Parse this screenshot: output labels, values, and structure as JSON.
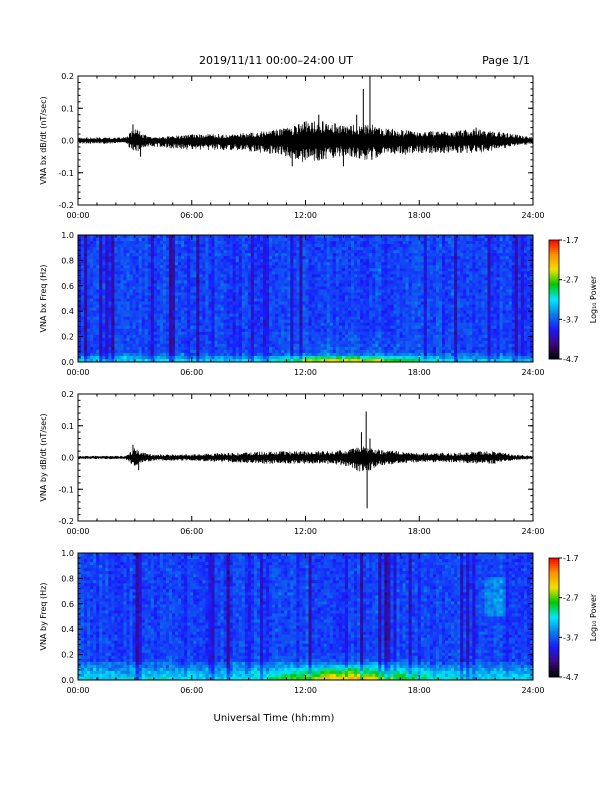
{
  "header": {
    "title": "2019/11/11  00:00–24:00 UT",
    "page": "Page 1/1"
  },
  "colors": {
    "trace": "#000000",
    "colormap": [
      "#000000",
      "#3a0a7a",
      "#1a1aff",
      "#0a7ee8",
      "#00e8ff",
      "#00c800",
      "#f0e000",
      "#ff9000",
      "#ff0000"
    ]
  },
  "colorbar": {
    "label": "Log₁₀ Power",
    "ticks": [
      "-1.7",
      "-2.7",
      "-3.7",
      "-4.7"
    ]
  },
  "time_axis": {
    "ticks": [
      "00:00",
      "06:00",
      "12:00",
      "18:00",
      "24:00"
    ],
    "label": "Universal Time (hh:mm)"
  },
  "chart_data": [
    {
      "type": "line",
      "ylabel": "VNA bx dB/dt (nT/sec)",
      "ylim": [
        -0.2,
        0.2
      ],
      "yticks": [
        "0.2",
        "0.1",
        "0.0",
        "-0.1",
        "-0.2"
      ],
      "x_units": "hours UT",
      "xlim": [
        0,
        24
      ],
      "envelope": {
        "x": [
          0,
          2.5,
          3,
          3.5,
          4,
          6,
          8,
          10,
          11,
          12,
          13,
          14,
          15,
          15.5,
          16,
          18,
          20,
          21,
          22,
          23,
          24
        ],
        "upper": [
          0.01,
          0.01,
          0.04,
          0.02,
          0.01,
          0.02,
          0.02,
          0.03,
          0.04,
          0.06,
          0.06,
          0.05,
          0.05,
          0.05,
          0.04,
          0.03,
          0.03,
          0.04,
          0.03,
          0.02,
          0.01
        ],
        "lower": [
          -0.01,
          -0.01,
          -0.04,
          -0.02,
          -0.02,
          -0.03,
          -0.03,
          -0.04,
          -0.05,
          -0.07,
          -0.06,
          -0.05,
          -0.06,
          -0.06,
          -0.05,
          -0.04,
          -0.04,
          -0.04,
          -0.03,
          -0.02,
          -0.01
        ]
      },
      "spikes": [
        {
          "x": 2.9,
          "y": 0.05
        },
        {
          "x": 3.3,
          "y": -0.05
        },
        {
          "x": 11.3,
          "y": -0.08
        },
        {
          "x": 12.7,
          "y": 0.08
        },
        {
          "x": 14.0,
          "y": -0.08
        },
        {
          "x": 14.7,
          "y": 0.08
        },
        {
          "x": 15.05,
          "y": 0.16
        },
        {
          "x": 15.4,
          "y": 0.2
        },
        {
          "x": 15.5,
          "y": -0.06
        },
        {
          "x": 21.0,
          "y": 0.04
        }
      ]
    },
    {
      "type": "heatmap",
      "ylabel": "VNA bx Freq (Hz)",
      "ylim": [
        0,
        1
      ],
      "yticks": [
        "1.0",
        "0.8",
        "0.6",
        "0.4",
        "0.2",
        "0.0"
      ],
      "xlim": [
        0,
        24
      ],
      "zlim": [
        -4.7,
        -1.7
      ],
      "z_label": "Log₁₀ Power",
      "description": "Background about -3.6 to -3.9 across 0-1 Hz; enhanced power (about -2.7 to -2.3) below 0.05 Hz, strongest 11:00-17:00"
    },
    {
      "type": "line",
      "ylabel": "VNA by dB/dt (nT/sec)",
      "ylim": [
        -0.2,
        0.2
      ],
      "yticks": [
        "0.2",
        "0.1",
        "0.0",
        "-0.1",
        "-0.2"
      ],
      "x_units": "hours UT",
      "xlim": [
        0,
        24
      ],
      "envelope": {
        "x": [
          0,
          2.5,
          3,
          3.5,
          4,
          6,
          8,
          10,
          11,
          12,
          13,
          14,
          15,
          15.5,
          16,
          18,
          20,
          21,
          22,
          23,
          24
        ],
        "upper": [
          0.005,
          0.005,
          0.03,
          0.015,
          0.01,
          0.01,
          0.015,
          0.02,
          0.02,
          0.02,
          0.02,
          0.025,
          0.04,
          0.03,
          0.025,
          0.015,
          0.015,
          0.02,
          0.02,
          0.01,
          0.005
        ],
        "lower": [
          -0.005,
          -0.005,
          -0.03,
          -0.015,
          -0.01,
          -0.01,
          -0.015,
          -0.02,
          -0.02,
          -0.02,
          -0.02,
          -0.025,
          -0.05,
          -0.04,
          -0.025,
          -0.015,
          -0.015,
          -0.02,
          -0.02,
          -0.01,
          -0.005
        ]
      },
      "spikes": [
        {
          "x": 2.9,
          "y": 0.04
        },
        {
          "x": 3.2,
          "y": -0.04
        },
        {
          "x": 14.95,
          "y": 0.08
        },
        {
          "x": 15.05,
          "y": -0.04
        },
        {
          "x": 15.2,
          "y": 0.145
        },
        {
          "x": 15.25,
          "y": -0.16
        },
        {
          "x": 15.4,
          "y": 0.06
        }
      ]
    },
    {
      "type": "heatmap",
      "ylabel": "VNA by Freq (Hz)",
      "ylim": [
        0,
        1
      ],
      "yticks": [
        "1.0",
        "0.8",
        "0.6",
        "0.4",
        "0.2",
        "0.0"
      ],
      "xlim": [
        0,
        24
      ],
      "zlim": [
        -4.7,
        -1.7
      ],
      "z_label": "Log₁₀ Power",
      "description": "Background about -3.5 to -3.9; enhanced power below 0.15 Hz, strongest near 14:00-16:00"
    }
  ]
}
